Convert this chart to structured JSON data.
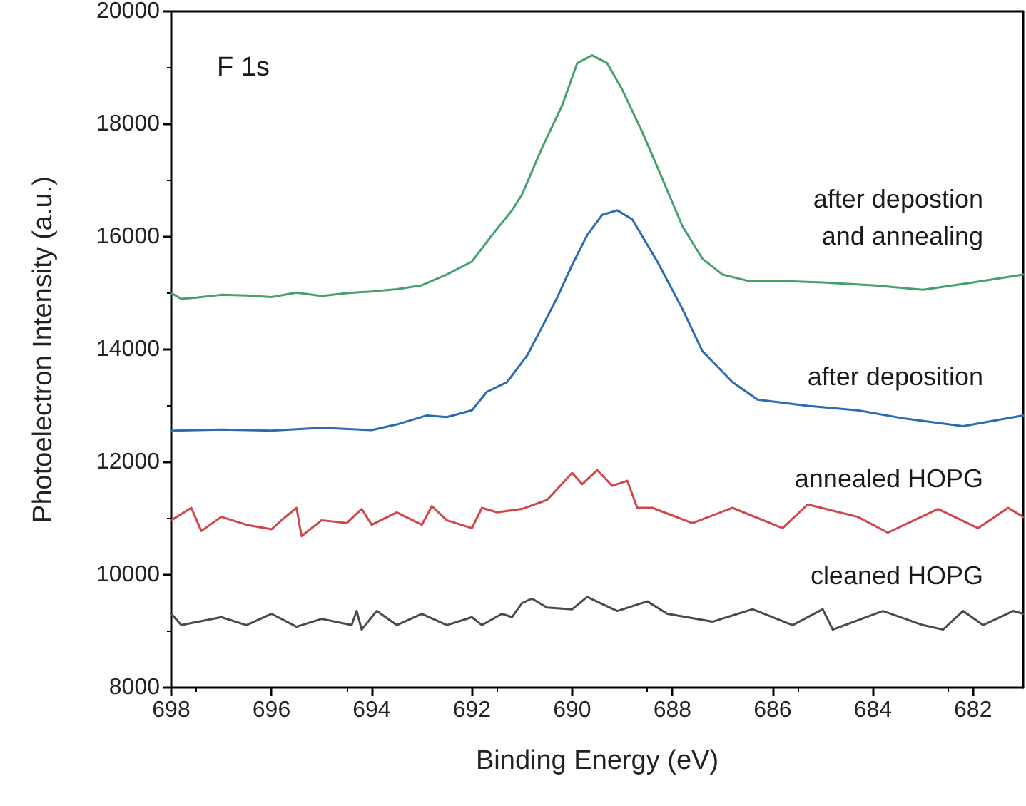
{
  "chart_data": {
    "type": "line",
    "annotations": [
      "F 1s"
    ],
    "xlabel": "Binding Energy (eV)",
    "ylabel": "Photoelectron Intensity (a.u.)",
    "xlim": [
      698,
      681
    ],
    "ylim": [
      8000,
      20000
    ],
    "xticks": [
      698,
      696,
      694,
      692,
      690,
      688,
      686,
      684,
      682
    ],
    "yticks": [
      8000,
      10000,
      12000,
      14000,
      16000,
      18000,
      20000
    ],
    "marker": "none",
    "series": [
      {
        "name": "cleaned HOPG",
        "color": "#4a4a4a",
        "x": [
          698,
          697.8,
          697,
          696.5,
          696,
          695.5,
          695,
          694.4,
          694.3,
          694.2,
          693.9,
          693.5,
          693,
          692.5,
          692,
          691.8,
          691.4,
          691.2,
          691,
          690.8,
          690.5,
          690,
          689.7,
          689.1,
          688.5,
          688.1,
          687.2,
          686.4,
          685.6,
          685,
          684.8,
          683.8,
          683,
          682.6,
          682.2,
          681.8,
          681.2,
          681
        ],
        "values": [
          9310,
          9110,
          9250,
          9110,
          9310,
          9080,
          9220,
          9110,
          9360,
          9030,
          9360,
          9110,
          9310,
          9110,
          9250,
          9110,
          9310,
          9250,
          9500,
          9580,
          9420,
          9390,
          9610,
          9360,
          9530,
          9310,
          9170,
          9390,
          9110,
          9390,
          9030,
          9360,
          9110,
          9030,
          9360,
          9110,
          9360,
          9310
        ]
      },
      {
        "name": "annealed HOPG",
        "color": "#d0454a",
        "x": [
          698,
          697.6,
          697.4,
          697,
          696.5,
          696,
          695.8,
          695.5,
          695.4,
          695,
          694.5,
          694.2,
          694,
          693.5,
          693,
          692.8,
          692.5,
          692,
          691.8,
          691.5,
          691,
          690.5,
          690,
          689.8,
          689.5,
          689.2,
          688.9,
          688.7,
          688.4,
          687.6,
          686.8,
          685.8,
          685.3,
          684.3,
          683.7,
          682.7,
          681.9,
          681.3,
          681
        ],
        "values": [
          10970,
          11190,
          10780,
          11030,
          10890,
          10810,
          10970,
          11190,
          10690,
          10970,
          10920,
          11170,
          10890,
          11110,
          10890,
          11220,
          10970,
          10830,
          11190,
          11110,
          11170,
          11330,
          11810,
          11610,
          11860,
          11580,
          11670,
          11190,
          11190,
          10920,
          11190,
          10830,
          11250,
          11030,
          10750,
          11170,
          10830,
          11190,
          11030
        ]
      },
      {
        "name": "after deposition",
        "color": "#2a6bb5",
        "x": [
          698,
          697,
          696,
          695,
          694,
          693.5,
          692.9,
          692.5,
          692,
          691.7,
          691.3,
          690.9,
          690.6,
          690.3,
          690,
          689.7,
          689.4,
          689.1,
          688.8,
          688.3,
          687.8,
          687.4,
          686.8,
          686.3,
          685.3,
          684.3,
          683.4,
          682.2,
          681
        ],
        "values": [
          12560,
          12580,
          12560,
          12610,
          12570,
          12670,
          12830,
          12800,
          12920,
          13250,
          13420,
          13890,
          14400,
          14920,
          15500,
          16030,
          16390,
          16470,
          16310,
          15560,
          14720,
          13970,
          13420,
          13110,
          13000,
          12920,
          12780,
          12640,
          12830
        ]
      },
      {
        "name": "after depostion\nand annealing",
        "color": "#45a06e",
        "x": [
          698,
          697.8,
          697.5,
          697,
          696.5,
          696,
          695.5,
          695,
          694.5,
          694,
          693.5,
          693,
          692.5,
          692,
          691.6,
          691.2,
          691,
          690.6,
          690.2,
          689.9,
          689.6,
          689.3,
          689,
          688.6,
          688.2,
          687.8,
          687.4,
          687,
          686.5,
          686,
          685,
          684,
          683,
          682,
          681
        ],
        "values": [
          15000,
          14900,
          14920,
          14970,
          14960,
          14930,
          15010,
          14950,
          15000,
          15030,
          15070,
          15140,
          15330,
          15560,
          16030,
          16470,
          16750,
          17580,
          18330,
          19080,
          19220,
          19080,
          18610,
          17860,
          17030,
          16190,
          15610,
          15330,
          15220,
          15220,
          15190,
          15140,
          15060,
          15190,
          15330
        ]
      }
    ]
  }
}
